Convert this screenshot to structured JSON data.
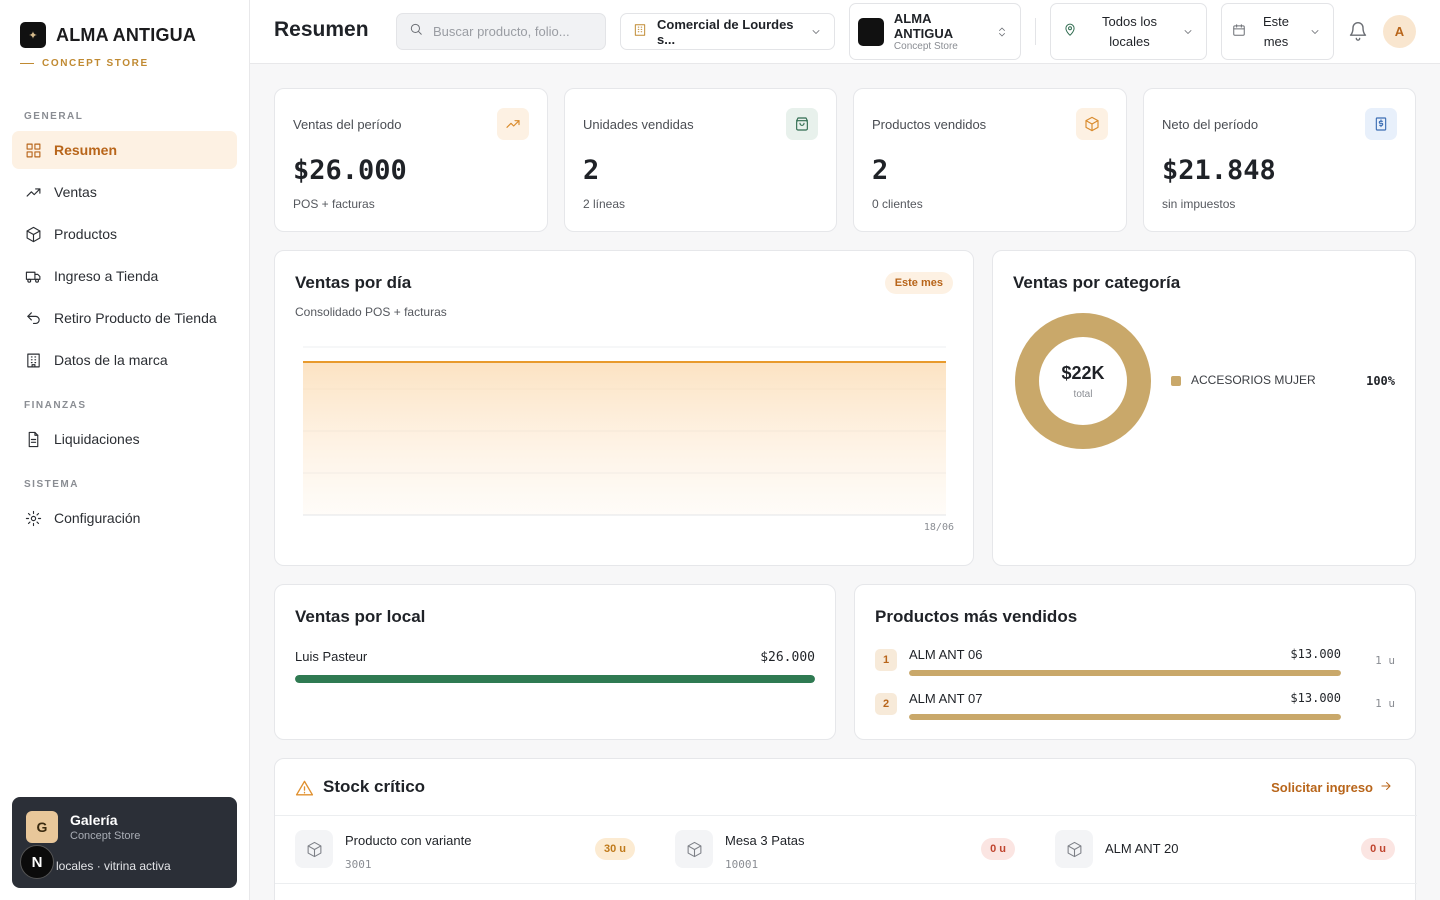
{
  "brand": {
    "name": "ALMA ANTIGUA",
    "tagline": "CONCEPT STORE"
  },
  "sidebar": {
    "sections": [
      {
        "title": "GENERAL",
        "items": [
          {
            "label": "Resumen",
            "icon": "dashboard-icon",
            "active": true
          },
          {
            "label": "Ventas",
            "icon": "trending-up-icon"
          },
          {
            "label": "Productos",
            "icon": "box-icon"
          },
          {
            "label": "Ingreso a Tienda",
            "icon": "truck-icon"
          },
          {
            "label": "Retiro Producto de Tienda",
            "icon": "undo-icon"
          },
          {
            "label": "Datos de la marca",
            "icon": "building-icon"
          }
        ]
      },
      {
        "title": "FINANZAS",
        "items": [
          {
            "label": "Liquidaciones",
            "icon": "document-icon"
          }
        ]
      },
      {
        "title": "SISTEMA",
        "items": [
          {
            "label": "Configuración",
            "icon": "gear-icon"
          }
        ]
      }
    ],
    "gallery": {
      "initial": "G",
      "title": "Galería",
      "subtitle": "Concept Store",
      "footer": "locales · vitrina activa",
      "badge": "N"
    }
  },
  "header": {
    "title": "Resumen",
    "search_placeholder": "Buscar producto, folio...",
    "store": "Comercial de Lourdes s...",
    "brand_title": "ALMA ANTIGUA",
    "brand_subtitle": "Concept Store",
    "location": "Todos los locales",
    "period": "Este mes",
    "avatar_initial": "A"
  },
  "kpis": [
    {
      "label": "Ventas del período",
      "value": "$26.000",
      "sub": "POS + facturas",
      "icon": "trending-up-icon",
      "icon_color": "#d98a2b",
      "icon_bg": "#fdf1e3"
    },
    {
      "label": "Unidades vendidas",
      "value": "2",
      "sub": "2 líneas",
      "icon": "shopping-bag-icon",
      "icon_color": "#2f6b4f",
      "icon_bg": "#e8f1ec"
    },
    {
      "label": "Productos vendidos",
      "value": "2",
      "sub": "0 clientes",
      "icon": "box-icon",
      "icon_color": "#d98a2b",
      "icon_bg": "#fdf1e3"
    },
    {
      "label": "Neto del período",
      "value": "$21.848",
      "sub": "sin impuestos",
      "icon": "invoice-icon",
      "icon_color": "#3b6db3",
      "icon_bg": "#e8f0fb"
    }
  ],
  "sales_by_day": {
    "title": "Ventas por día",
    "subtitle": "Consolidado POS + facturas",
    "pill": "Este mes",
    "x_tick": "18/06",
    "line_color": "#e89a2c"
  },
  "sales_by_category": {
    "title": "Ventas por categoría",
    "center_value": "$22K",
    "center_label": "total",
    "items": [
      {
        "name": "ACCESORIOS MUJER",
        "percent": "100%",
        "share": 1.0,
        "color": "#c9a86a"
      }
    ]
  },
  "sales_by_location": {
    "title": "Ventas por local",
    "rows": [
      {
        "name": "Luis Pasteur",
        "value": "$26.000",
        "share": 1.0,
        "color": "#2f7a52"
      }
    ]
  },
  "top_products": {
    "title": "Productos más vendidos",
    "rows": [
      {
        "rank": "1",
        "name": "ALM ANT 06",
        "value": "$13.000",
        "units": "1 u",
        "share": 1.0
      },
      {
        "rank": "2",
        "name": "ALM ANT 07",
        "value": "$13.000",
        "units": "1 u",
        "share": 1.0
      }
    ],
    "bar_color": "#c9a86a"
  },
  "critical_stock": {
    "title": "Stock crítico",
    "action": "Solicitar ingreso",
    "items": [
      {
        "name": "Producto con variante",
        "code": "3001",
        "badge": "30 u",
        "badge_kind": "warn"
      },
      {
        "name": "Mesa 3 Patas",
        "code": "10001",
        "badge": "0 u",
        "badge_kind": "danger"
      },
      {
        "name": "ALM ANT 20",
        "code": "",
        "badge": "0 u",
        "badge_kind": "danger"
      }
    ]
  }
}
